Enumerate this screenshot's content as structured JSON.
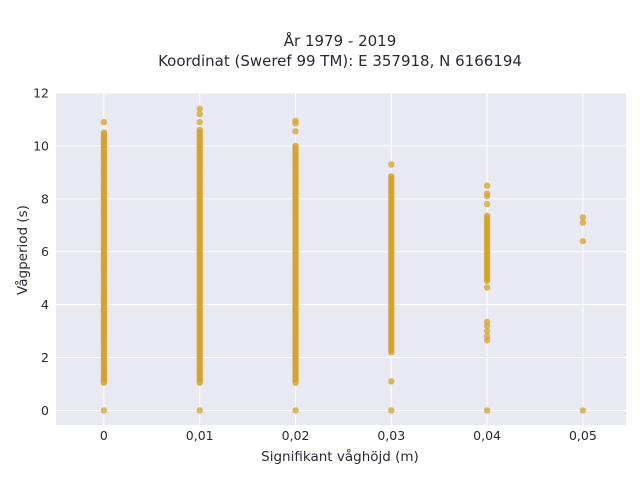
{
  "chart_data": {
    "type": "scatter",
    "title_line1": "År 1979 - 2019",
    "title_line2": "Koordinat (Sweref 99 TM): E 357918, N 6166194",
    "xlabel": "Signifikant våghöjd (m)",
    "ylabel": "Vågperiod (s)",
    "xlim": [
      -0.0048,
      0.0052
    ],
    "ylim": [
      -0.55,
      12
    ],
    "x_ticks": [
      0,
      0.01,
      0.02,
      0.03,
      0.04,
      0.05
    ],
    "x_tick_labels": [
      "0",
      "0,01",
      "0,02",
      "0,03",
      "0,04",
      "0,05"
    ],
    "y_ticks": [
      0,
      2,
      4,
      6,
      8,
      10,
      12
    ],
    "y_tick_labels": [
      "0",
      "2",
      "4",
      "6",
      "8",
      "10",
      "12"
    ],
    "grid": true,
    "colors": {
      "plot_bg": "#e9e9f1",
      "grid": "#ffffff",
      "marker": "#d4a22a"
    },
    "columns": [
      {
        "x": 0,
        "y_min": 1.05,
        "y_max": 10.5,
        "extra_y": [
          10.9,
          0.0
        ]
      },
      {
        "x": 0.01,
        "y_min": 1.05,
        "y_max": 10.6,
        "extra_y": [
          10.9,
          11.2,
          11.4,
          0.0
        ]
      },
      {
        "x": 0.02,
        "y_min": 1.05,
        "y_max": 10.0,
        "extra_y": [
          10.55,
          10.85,
          10.95,
          0.0
        ]
      },
      {
        "x": 0.03,
        "y_min": 2.2,
        "y_max": 8.85,
        "extra_y": [
          9.3,
          1.1,
          0.0
        ]
      },
      {
        "x": 0.04,
        "y_min": 4.9,
        "y_max": 7.35,
        "extra_y": [
          2.65,
          2.8,
          3.0,
          3.2,
          3.35,
          4.65,
          7.8,
          8.1,
          8.2,
          8.5,
          0.0
        ]
      },
      {
        "x": 0.05,
        "y_min": null,
        "y_max": null,
        "extra_y": [
          7.3,
          7.1,
          6.4,
          0.0
        ]
      }
    ]
  }
}
